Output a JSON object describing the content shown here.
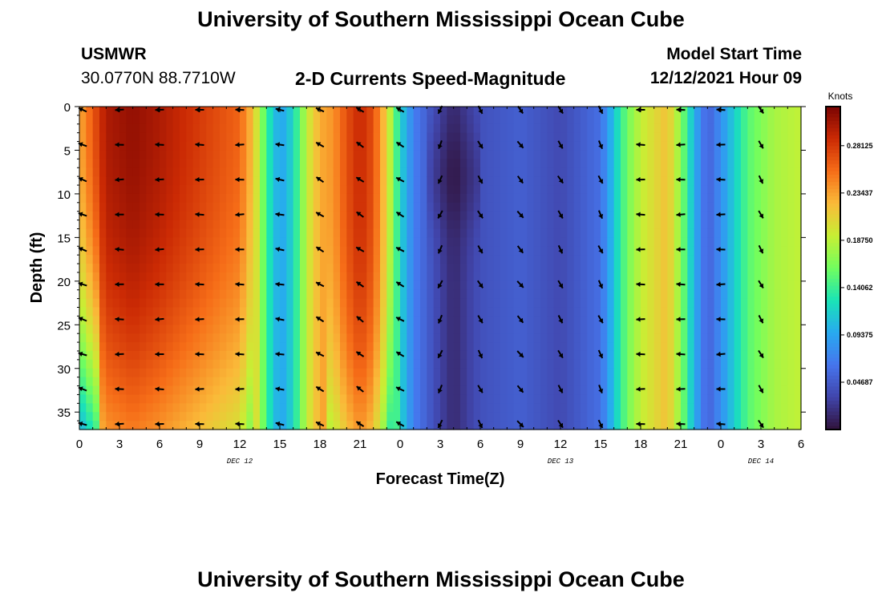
{
  "header": {
    "title": "University of Southern Mississippi Ocean Cube",
    "station_name": "USMWR",
    "station_coords": "30.0770N  88.7710W",
    "plot_title": "2-D Currents Speed-Magnitude",
    "model_label": "Model Start Time",
    "model_time": "12/12/2021 Hour 09"
  },
  "footer": {
    "title": "University of Southern Mississippi Ocean Cube"
  },
  "chart_data": {
    "type": "heatmap",
    "xlabel": "Forecast Time(Z)",
    "ylabel": "Depth (ft)",
    "x_ticks": [
      "0",
      "3",
      "6",
      "9",
      "12",
      "15",
      "18",
      "21",
      "0",
      "3",
      "6",
      "9",
      "12",
      "15",
      "18",
      "21",
      "0",
      "3",
      "6"
    ],
    "x_range_hours": [
      0,
      54
    ],
    "day_labels": [
      {
        "label": "DEC 12",
        "hour": 12
      },
      {
        "label": "DEC 13",
        "hour": 36
      },
      {
        "label": "DEC 14",
        "hour": 51
      }
    ],
    "y_ticks": [
      0,
      5,
      10,
      15,
      20,
      25,
      30,
      35
    ],
    "ylim": [
      0,
      37
    ],
    "y_inverted": true,
    "colorbar": {
      "unit": "Knots",
      "ticks": [
        "0.04687",
        "0.09375",
        "0.14062",
        "0.18750",
        "0.23437",
        "0.28125"
      ],
      "range": [
        0,
        0.32
      ],
      "colormap": "turbo"
    },
    "speed_profile_by_hour": [
      {
        "hour": 0,
        "knots": 0.23
      },
      {
        "hour": 2,
        "knots": 0.3
      },
      {
        "hour": 4,
        "knots": 0.31
      },
      {
        "hour": 6,
        "knots": 0.3
      },
      {
        "hour": 9,
        "knots": 0.28
      },
      {
        "hour": 12,
        "knots": 0.26
      },
      {
        "hour": 13,
        "knots": 0.22
      },
      {
        "hour": 14,
        "knots": 0.14
      },
      {
        "hour": 15,
        "knots": 0.09
      },
      {
        "hour": 16,
        "knots": 0.12
      },
      {
        "hour": 17,
        "knots": 0.19
      },
      {
        "hour": 18,
        "knots": 0.23
      },
      {
        "hour": 19,
        "knots": 0.24
      },
      {
        "hour": 20,
        "knots": 0.27
      },
      {
        "hour": 21,
        "knots": 0.29
      },
      {
        "hour": 22,
        "knots": 0.27
      },
      {
        "hour": 23,
        "knots": 0.21
      },
      {
        "hour": 24,
        "knots": 0.12
      },
      {
        "hour": 25,
        "knots": 0.07
      },
      {
        "hour": 27,
        "knots": 0.03
      },
      {
        "hour": 28,
        "knots": 0.015
      },
      {
        "hour": 30,
        "knots": 0.04
      },
      {
        "hour": 33,
        "knots": 0.05
      },
      {
        "hour": 36,
        "knots": 0.035
      },
      {
        "hour": 39,
        "knots": 0.06
      },
      {
        "hour": 40,
        "knots": 0.11
      },
      {
        "hour": 41,
        "knots": 0.16
      },
      {
        "hour": 42,
        "knots": 0.19
      },
      {
        "hour": 44,
        "knots": 0.22
      },
      {
        "hour": 45,
        "knots": 0.17
      },
      {
        "hour": 46,
        "knots": 0.1
      },
      {
        "hour": 47,
        "knots": 0.05
      },
      {
        "hour": 48,
        "knots": 0.08
      },
      {
        "hour": 50,
        "knots": 0.15
      },
      {
        "hour": 52,
        "knots": 0.18
      },
      {
        "hour": 54,
        "knots": 0.19
      }
    ],
    "vectors": {
      "hours": [
        0,
        3,
        6,
        9,
        12,
        15,
        18,
        21,
        24,
        27,
        30,
        33,
        36,
        39,
        42,
        45,
        48,
        51
      ],
      "depths": [
        0,
        4,
        8,
        12,
        16,
        20,
        24,
        28,
        32,
        36
      ],
      "direction_deg_by_hour": [
        {
          "hour": 0,
          "deg": 160
        },
        {
          "hour": 3,
          "deg": 180
        },
        {
          "hour": 6,
          "deg": 180
        },
        {
          "hour": 9,
          "deg": 180
        },
        {
          "hour": 12,
          "deg": 180
        },
        {
          "hour": 15,
          "deg": 170
        },
        {
          "hour": 18,
          "deg": 150
        },
        {
          "hour": 21,
          "deg": 145
        },
        {
          "hour": 24,
          "deg": 150
        },
        {
          "hour": 27,
          "deg": 245
        },
        {
          "hour": 30,
          "deg": 300
        },
        {
          "hour": 33,
          "deg": 310
        },
        {
          "hour": 36,
          "deg": 300
        },
        {
          "hour": 39,
          "deg": 295
        },
        {
          "hour": 42,
          "deg": 180
        },
        {
          "hour": 45,
          "deg": 180
        },
        {
          "hour": 48,
          "deg": 180
        },
        {
          "hour": 51,
          "deg": 300
        }
      ]
    }
  }
}
